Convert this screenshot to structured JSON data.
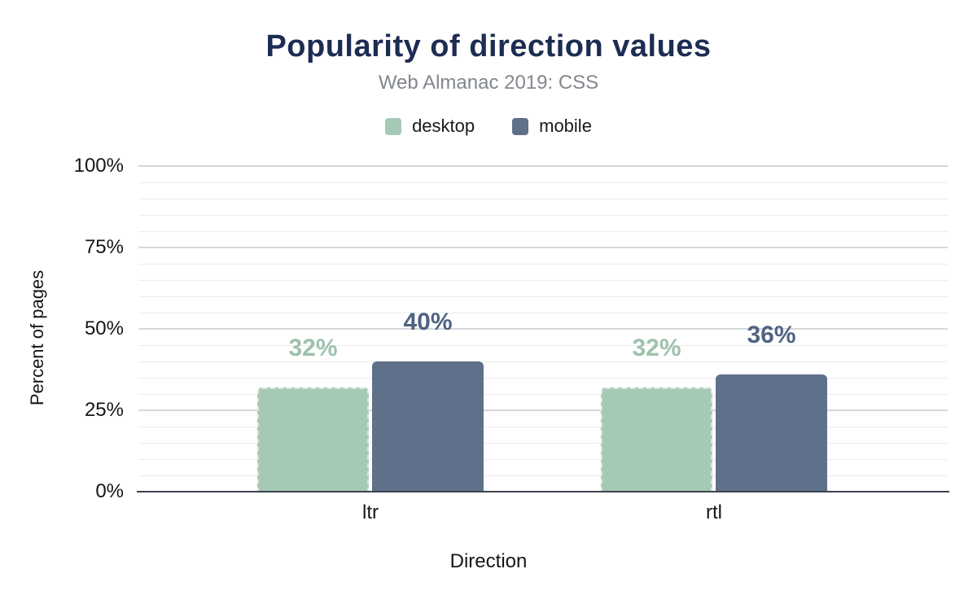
{
  "title": "Popularity of direction values",
  "subtitle": "Web Almanac 2019: CSS",
  "legend": [
    {
      "label": "desktop",
      "color": "#a6c9b6"
    },
    {
      "label": "mobile",
      "color": "#5f708a"
    }
  ],
  "colors": {
    "title": "#1d2c52",
    "subtitle": "#82878e",
    "axis_text": "#161616",
    "minor_grid": "#ececec",
    "major_grid": "#d5d7d9",
    "baseline": "#3d444c"
  },
  "chart_data": {
    "type": "bar",
    "title": "Popularity of direction values",
    "subtitle": "Web Almanac 2019: CSS",
    "categories": [
      "ltr",
      "rtl"
    ],
    "series": [
      {
        "name": "desktop",
        "color": "#a6c9b6",
        "label_color": "#9dc2ad",
        "values": [
          32,
          32
        ],
        "labels": [
          "32%",
          "32%"
        ]
      },
      {
        "name": "mobile",
        "color": "#5f708a",
        "label_color": "#4f6382",
        "values": [
          40,
          36
        ],
        "labels": [
          "40%",
          "36%"
        ]
      }
    ],
    "xlabel": "Direction",
    "ylabel": "Percent of pages",
    "ylim": [
      0,
      100
    ],
    "yticks": [
      {
        "v": 0,
        "label": "0%"
      },
      {
        "v": 25,
        "label": "25%"
      },
      {
        "v": 50,
        "label": "50%"
      },
      {
        "v": 75,
        "label": "75%"
      },
      {
        "v": 100,
        "label": "100%"
      }
    ],
    "minor_grid_step": 5,
    "grid": "horizontal",
    "legend_position": "top"
  }
}
